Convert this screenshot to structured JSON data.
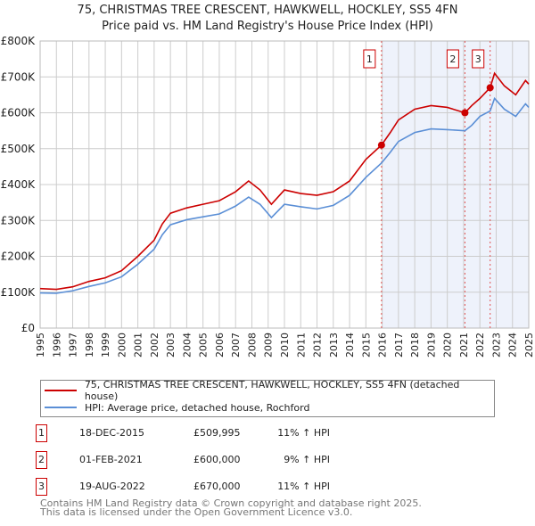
{
  "title": "75, CHRISTMAS TREE CRESCENT, HAWKWELL, HOCKLEY, SS5 4FN",
  "subtitle": "Price paid vs. HM Land Registry's House Price Index (HPI)",
  "legend": {
    "property": "75, CHRISTMAS TREE CRESCENT, HAWKWELL, HOCKLEY, SS5 4FN (detached house)",
    "hpi": "HPI: Average price, detached house, Rochford"
  },
  "colors": {
    "property": "#cc0000",
    "hpi": "#5b8fd6",
    "shade": "#eef2fb",
    "grid": "#cccccc"
  },
  "sales": [
    {
      "n": "1",
      "date": "18-DEC-2015",
      "price": "£509,995",
      "hpi": "11% ↑ HPI",
      "x": 2015.96,
      "y": 509995
    },
    {
      "n": "2",
      "date": "01-FEB-2021",
      "price": "£600,000",
      "hpi": "9% ↑ HPI",
      "x": 2021.08,
      "y": 600000
    },
    {
      "n": "3",
      "date": "19-AUG-2022",
      "price": "£670,000",
      "hpi": "11% ↑ HPI",
      "x": 2022.63,
      "y": 670000
    }
  ],
  "footer": [
    "Contains HM Land Registry data © Crown copyright and database right 2025.",
    "This data is licensed under the Open Government Licence v3.0."
  ],
  "chart_data": {
    "type": "line",
    "xlim": [
      1995,
      2025
    ],
    "ylim": [
      0,
      800000
    ],
    "x_ticks": [
      "1995",
      "1996",
      "1997",
      "1998",
      "1999",
      "2000",
      "2001",
      "2002",
      "2003",
      "2004",
      "2005",
      "2006",
      "2007",
      "2008",
      "2009",
      "2010",
      "2011",
      "2012",
      "2013",
      "2014",
      "2015",
      "2016",
      "2017",
      "2018",
      "2019",
      "2020",
      "2021",
      "2022",
      "2023",
      "2024",
      "2025"
    ],
    "y_ticks": [
      {
        "v": 0,
        "l": "£0"
      },
      {
        "v": 100000,
        "l": "£100K"
      },
      {
        "v": 200000,
        "l": "£200K"
      },
      {
        "v": 300000,
        "l": "£300K"
      },
      {
        "v": 400000,
        "l": "£400K"
      },
      {
        "v": 500000,
        "l": "£500K"
      },
      {
        "v": 600000,
        "l": "£600K"
      },
      {
        "v": 700000,
        "l": "£700K"
      },
      {
        "v": 800000,
        "l": "£800K"
      }
    ],
    "series": [
      {
        "name": "property",
        "x": [
          1995,
          1996,
          1997,
          1998,
          1999,
          2000,
          2001,
          2002,
          2002.5,
          2003,
          2004,
          2005,
          2006,
          2007,
          2007.8,
          2008.5,
          2009.2,
          2010,
          2011,
          2012,
          2013,
          2014,
          2015,
          2015.96,
          2016.5,
          2017,
          2018,
          2019,
          2020,
          2021.08,
          2021.5,
          2022,
          2022.63,
          2022.9,
          2023.5,
          2024.2,
          2024.8,
          2025
        ],
        "y": [
          110000,
          108000,
          115000,
          130000,
          140000,
          160000,
          200000,
          245000,
          290000,
          320000,
          335000,
          345000,
          355000,
          380000,
          410000,
          385000,
          345000,
          385000,
          375000,
          370000,
          380000,
          410000,
          470000,
          509995,
          545000,
          580000,
          610000,
          620000,
          615000,
          600000,
          620000,
          640000,
          670000,
          710000,
          675000,
          650000,
          690000,
          680000
        ]
      },
      {
        "name": "hpi",
        "x": [
          1995,
          1996,
          1997,
          1998,
          1999,
          2000,
          2001,
          2002,
          2002.5,
          2003,
          2004,
          2005,
          2006,
          2007,
          2007.8,
          2008.5,
          2009.2,
          2010,
          2011,
          2012,
          2013,
          2014,
          2015,
          2015.96,
          2016.5,
          2017,
          2018,
          2019,
          2020,
          2021.08,
          2021.5,
          2022,
          2022.63,
          2022.9,
          2023.5,
          2024.2,
          2024.8,
          2025
        ],
        "y": [
          98000,
          97000,
          104000,
          116000,
          126000,
          143000,
          178000,
          220000,
          260000,
          288000,
          302000,
          310000,
          318000,
          340000,
          365000,
          345000,
          308000,
          345000,
          338000,
          332000,
          342000,
          370000,
          420000,
          460000,
          490000,
          520000,
          545000,
          555000,
          553000,
          550000,
          565000,
          590000,
          605000,
          640000,
          610000,
          590000,
          625000,
          615000
        ]
      }
    ]
  }
}
